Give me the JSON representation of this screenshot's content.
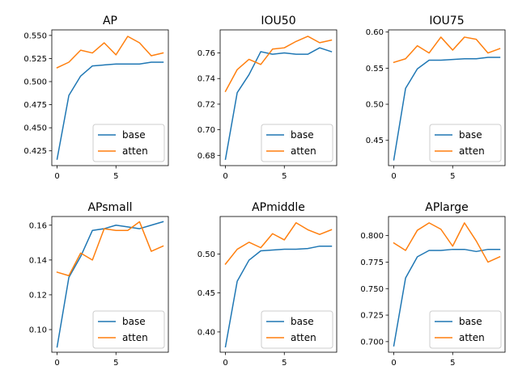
{
  "chart_data": [
    {
      "type": "line",
      "title": "AP",
      "x": [
        0,
        1,
        2,
        3,
        4,
        5,
        6,
        7,
        8,
        9
      ],
      "xlim": [
        -0.45,
        9.45
      ],
      "ylim": [
        0.409,
        0.556
      ],
      "xticks": [
        0,
        5
      ],
      "xtick_labels": [
        "0",
        "5"
      ],
      "yticks": [
        0.425,
        0.45,
        0.475,
        0.5,
        0.525,
        0.55
      ],
      "ytick_labels": [
        "0.425",
        "0.450",
        "0.475",
        "0.500",
        "0.525",
        "0.550"
      ],
      "legend": "lower-right",
      "series": [
        {
          "name": "base",
          "color": "#1f77b4",
          "values": [
            0.416,
            0.485,
            0.506,
            0.517,
            0.518,
            0.519,
            0.519,
            0.519,
            0.521,
            0.521
          ]
        },
        {
          "name": "atten",
          "color": "#ff7f0e",
          "values": [
            0.515,
            0.521,
            0.534,
            0.531,
            0.542,
            0.529,
            0.549,
            0.542,
            0.528,
            0.531
          ]
        }
      ]
    },
    {
      "type": "line",
      "title": "IOU50",
      "x": [
        0,
        1,
        2,
        3,
        4,
        5,
        6,
        7,
        8,
        9
      ],
      "xlim": [
        -0.45,
        9.45
      ],
      "ylim": [
        0.672,
        0.778
      ],
      "xticks": [
        0,
        5
      ],
      "xtick_labels": [
        "0",
        "5"
      ],
      "yticks": [
        0.68,
        0.7,
        0.72,
        0.74,
        0.76
      ],
      "ytick_labels": [
        "0.68",
        "0.70",
        "0.72",
        "0.74",
        "0.76"
      ],
      "legend": "lower-right",
      "series": [
        {
          "name": "base",
          "color": "#1f77b4",
          "values": [
            0.677,
            0.729,
            0.743,
            0.761,
            0.759,
            0.76,
            0.759,
            0.759,
            0.764,
            0.761
          ]
        },
        {
          "name": "atten",
          "color": "#ff7f0e",
          "values": [
            0.73,
            0.747,
            0.755,
            0.751,
            0.763,
            0.764,
            0.769,
            0.773,
            0.768,
            0.77
          ]
        }
      ]
    },
    {
      "type": "line",
      "title": "IOU75",
      "x": [
        0,
        1,
        2,
        3,
        4,
        5,
        6,
        7,
        8,
        9
      ],
      "xlim": [
        -0.45,
        9.45
      ],
      "ylim": [
        0.415,
        0.603
      ],
      "xticks": [
        0,
        5
      ],
      "xtick_labels": [
        "0",
        "5"
      ],
      "yticks": [
        0.45,
        0.5,
        0.55,
        0.6
      ],
      "ytick_labels": [
        "0.45",
        "0.50",
        "0.55",
        "0.60"
      ],
      "legend": "lower-right",
      "series": [
        {
          "name": "base",
          "color": "#1f77b4",
          "values": [
            0.423,
            0.522,
            0.549,
            0.561,
            0.561,
            0.562,
            0.563,
            0.563,
            0.565,
            0.565
          ]
        },
        {
          "name": "atten",
          "color": "#ff7f0e",
          "values": [
            0.558,
            0.563,
            0.581,
            0.571,
            0.593,
            0.575,
            0.593,
            0.59,
            0.571,
            0.577
          ]
        }
      ]
    },
    {
      "type": "line",
      "title": "APsmall",
      "x": [
        0,
        1,
        2,
        3,
        4,
        5,
        6,
        7,
        8,
        9
      ],
      "xlim": [
        -0.45,
        9.45
      ],
      "ylim": [
        0.087,
        0.165
      ],
      "xticks": [
        0,
        5
      ],
      "xtick_labels": [
        "0",
        "5"
      ],
      "yticks": [
        0.1,
        0.12,
        0.14,
        0.16
      ],
      "ytick_labels": [
        "0.10",
        "0.12",
        "0.14",
        "0.16"
      ],
      "legend": "lower-right",
      "series": [
        {
          "name": "base",
          "color": "#1f77b4",
          "values": [
            0.09,
            0.13,
            0.142,
            0.157,
            0.158,
            0.16,
            0.159,
            0.158,
            0.16,
            0.162
          ]
        },
        {
          "name": "atten",
          "color": "#ff7f0e",
          "values": [
            0.133,
            0.131,
            0.144,
            0.14,
            0.158,
            0.157,
            0.157,
            0.162,
            0.145,
            0.148
          ]
        }
      ]
    },
    {
      "type": "line",
      "title": "APmiddle",
      "x": [
        0,
        1,
        2,
        3,
        4,
        5,
        6,
        7,
        8,
        9
      ],
      "xlim": [
        -0.45,
        9.45
      ],
      "ylim": [
        0.374,
        0.548
      ],
      "xticks": [
        0,
        5
      ],
      "xtick_labels": [
        "0",
        "5"
      ],
      "yticks": [
        0.4,
        0.45,
        0.5
      ],
      "ytick_labels": [
        "0.40",
        "0.45",
        "0.50"
      ],
      "legend": "lower-right",
      "series": [
        {
          "name": "base",
          "color": "#1f77b4",
          "values": [
            0.381,
            0.465,
            0.492,
            0.504,
            0.505,
            0.506,
            0.506,
            0.507,
            0.51,
            0.51
          ]
        },
        {
          "name": "atten",
          "color": "#ff7f0e",
          "values": [
            0.487,
            0.506,
            0.515,
            0.508,
            0.526,
            0.518,
            0.54,
            0.531,
            0.525,
            0.531
          ]
        }
      ]
    },
    {
      "type": "line",
      "title": "APlarge",
      "x": [
        0,
        1,
        2,
        3,
        4,
        5,
        6,
        7,
        8,
        9
      ],
      "xlim": [
        -0.45,
        9.45
      ],
      "ylim": [
        0.69,
        0.818
      ],
      "xticks": [
        0,
        5
      ],
      "xtick_labels": [
        "0",
        "5"
      ],
      "yticks": [
        0.7,
        0.725,
        0.75,
        0.775,
        0.8
      ],
      "ytick_labels": [
        "0.700",
        "0.725",
        "0.750",
        "0.775",
        "0.800"
      ],
      "legend": "lower-right",
      "series": [
        {
          "name": "base",
          "color": "#1f77b4",
          "values": [
            0.696,
            0.76,
            0.78,
            0.786,
            0.786,
            0.787,
            0.787,
            0.785,
            0.787,
            0.787
          ]
        },
        {
          "name": "atten",
          "color": "#ff7f0e",
          "values": [
            0.793,
            0.786,
            0.805,
            0.812,
            0.806,
            0.79,
            0.812,
            0.795,
            0.775,
            0.78
          ]
        }
      ]
    }
  ]
}
